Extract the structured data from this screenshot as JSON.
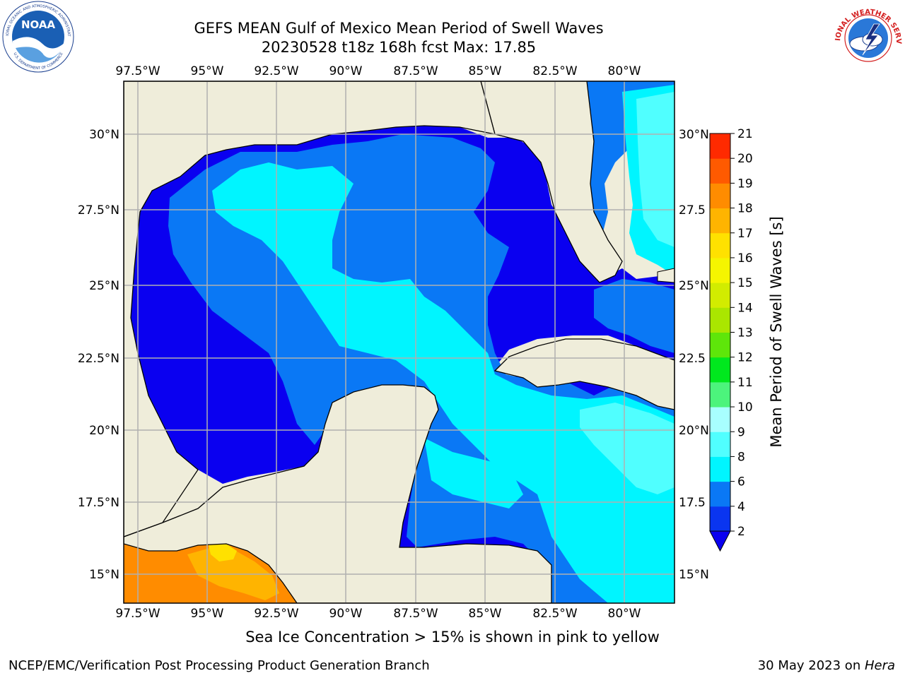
{
  "header": {
    "title_line1": "GEFS MEAN Gulf of Mexico Mean Period of Swell Waves",
    "title_line2": "20230528 t18z 168h fcst   Max: 17.85"
  },
  "logos": {
    "left": "noaa-logo",
    "left_text": "NOAA",
    "left_ring_text": "NATIONAL OCEANIC AND ATMOSPHERIC ADMINISTRATION",
    "left_ring_text_bottom": "U.S. DEPARTMENT OF COMMERCE",
    "right": "national-weather-service-logo",
    "right_ring_text": "NATIONAL WEATHER SERVICE"
  },
  "map": {
    "lon_labels": [
      "97.5°W",
      "95°W",
      "92.5°W",
      "90°W",
      "87.5°W",
      "85°W",
      "82.5°W",
      "80°W"
    ],
    "lat_labels_left": [
      "30°N",
      "27.5°N",
      "25°N",
      "22.5°N",
      "20°N",
      "17.5°N",
      "15°N"
    ],
    "lat_labels_right": [
      "30°N",
      "27.5",
      "25°N",
      "22.5",
      "20°N",
      "17.5",
      "15°N"
    ],
    "colors": {
      "land": "#efedda",
      "grid": "#b0b0b0",
      "coast": "#000000"
    }
  },
  "colorbar": {
    "label": "Mean Period of Swell Waves [s]",
    "ticks": [
      "2",
      "4",
      "6",
      "8",
      "9",
      "10",
      "11",
      "12",
      "13",
      "14",
      "15",
      "16",
      "17",
      "18",
      "19",
      "20",
      "21"
    ],
    "colors": [
      "#0a35f0",
      "#0a78f5",
      "#00f5ff",
      "#50ffff",
      "#a8ffff",
      "#4cf47c",
      "#00e81e",
      "#5ee60a",
      "#aae600",
      "#d2ec00",
      "#f5f500",
      "#ffe100",
      "#ffb400",
      "#ff8c00",
      "#ff5a00",
      "#ff2a00",
      "#ff0000"
    ],
    "under_color": "#0a00f0"
  },
  "footer": {
    "note": "Sea Ice Concentration > 15% is shown in pink to yellow",
    "left": "NCEP/EMC/Verification Post Processing Product Generation Branch",
    "right_date": "30 May 2023 on ",
    "right_machine": "Hera"
  }
}
